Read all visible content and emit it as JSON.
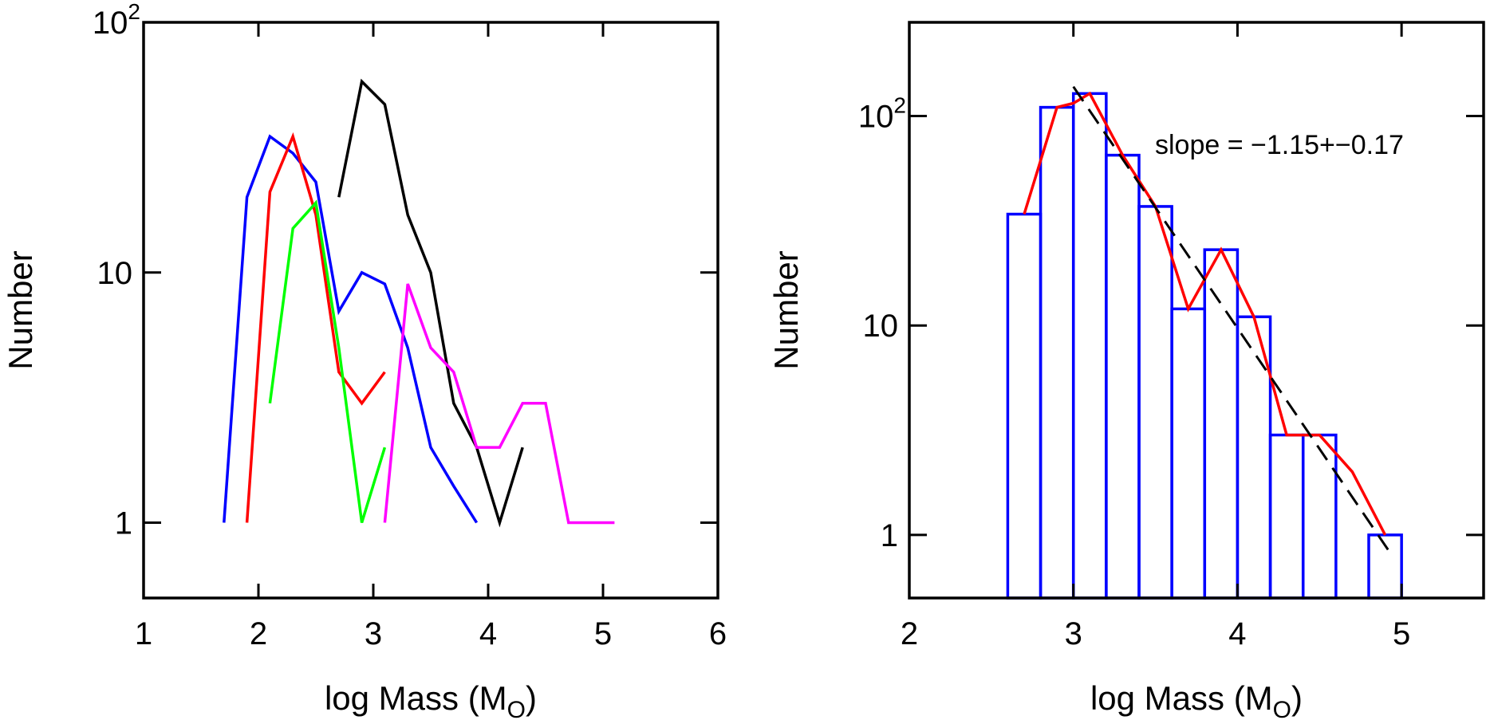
{
  "chart_data": [
    {
      "type": "line",
      "title": "",
      "xlabel": "log Mass (M",
      "xlabel_sub": "O",
      "xlabel_close": ")",
      "ylabel": "Number",
      "xlim": [
        1,
        6
      ],
      "ylim": [
        0.5,
        100
      ],
      "yscale": "log",
      "grid": false,
      "xticks": [
        1,
        2,
        3,
        4,
        5,
        6
      ],
      "yticks": [
        {
          "value": 1,
          "label": "1",
          "sup": ""
        },
        {
          "value": 10,
          "label": "10",
          "sup": ""
        },
        {
          "value": 100,
          "label": "10",
          "sup": "2"
        }
      ],
      "series": [
        {
          "color": "#0000ff",
          "x": [
            1.7,
            1.9,
            2.1,
            2.3,
            2.5,
            2.7,
            2.9,
            3.1,
            3.3,
            3.5,
            3.7,
            3.9
          ],
          "y": [
            1,
            20,
            35,
            30,
            23,
            7,
            10,
            9,
            5,
            2,
            1.4,
            1
          ]
        },
        {
          "color": "#ff0000",
          "x": [
            1.9,
            2.1,
            2.3,
            2.5,
            2.7,
            2.9,
            3.1
          ],
          "y": [
            1,
            21,
            35,
            17,
            4,
            3,
            4
          ]
        },
        {
          "color": "#00ff00",
          "x": [
            2.1,
            2.3,
            2.5,
            2.7,
            2.9,
            3.1
          ],
          "y": [
            3,
            15,
            19,
            5,
            1,
            2
          ]
        },
        {
          "color": "#000000",
          "x": [
            2.7,
            2.9,
            3.1,
            3.3,
            3.5,
            3.7,
            3.9,
            4.1,
            4.3
          ],
          "y": [
            20,
            58,
            47,
            17,
            10,
            3,
            2,
            1,
            2
          ]
        },
        {
          "color": "#ff00ff",
          "x": [
            3.1,
            3.3,
            3.5,
            3.7,
            3.9,
            4.1,
            4.3,
            4.5,
            4.7,
            4.9,
            5.1
          ],
          "y": [
            1,
            9,
            5,
            4,
            2,
            2,
            3,
            3,
            1,
            1,
            1
          ]
        }
      ]
    },
    {
      "type": "bar",
      "title": "",
      "xlabel": "log Mass (M",
      "xlabel_sub": "O",
      "xlabel_close": ")",
      "ylabel": "Number",
      "xlim": [
        2,
        5.5
      ],
      "ylim": [
        0.5,
        280
      ],
      "yscale": "log",
      "grid": false,
      "xticks": [
        2,
        3,
        4,
        5
      ],
      "yticks": [
        {
          "value": 1,
          "label": "1",
          "sup": ""
        },
        {
          "value": 10,
          "label": "10",
          "sup": ""
        },
        {
          "value": 100,
          "label": "10",
          "sup": "2"
        }
      ],
      "histogram": {
        "color": "#0000ff",
        "bin_edges": [
          2.6,
          2.8,
          3.0,
          3.2,
          3.4,
          3.6,
          3.8,
          4.0,
          4.2,
          4.4,
          4.6,
          4.8,
          5.0
        ],
        "counts": [
          34,
          110,
          128,
          65,
          37,
          12,
          23,
          11,
          3,
          3,
          0,
          1
        ]
      },
      "smoothed": {
        "color": "#ff0000",
        "x": [
          2.7,
          2.9,
          3.0,
          3.1,
          3.3,
          3.5,
          3.7,
          3.9,
          4.1,
          4.3,
          4.5,
          4.7,
          4.9
        ],
        "y": [
          34,
          110,
          115,
          128,
          65,
          37,
          12,
          23,
          11,
          3,
          3,
          2,
          1
        ]
      },
      "fit": {
        "color": "#000000",
        "style": "dashed",
        "x": [
          3.0,
          4.95
        ],
        "y": [
          138,
          0.78
        ]
      },
      "annotation": "slope = −1.15+−0.17"
    }
  ]
}
